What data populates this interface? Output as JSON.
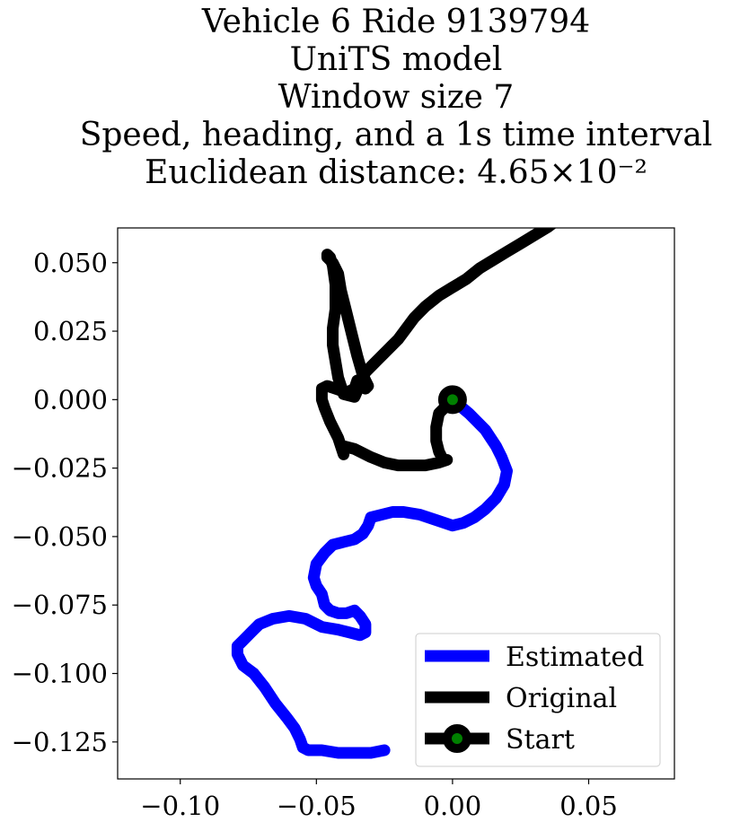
{
  "chart_data": {
    "type": "line",
    "title_lines": [
      "Vehicle 6 Ride 9139794",
      "UniTS model",
      "Window size 7",
      "Speed, heading, and a 1s time interval",
      "Euclidean distance: 4.65×10⁻²"
    ],
    "xlabel": "",
    "ylabel": "",
    "xlim": [
      -0.123,
      0.0815
    ],
    "ylim": [
      -0.1385,
      0.0627
    ],
    "x_ticks": [
      {
        "value": -0.1,
        "label": "−0.10"
      },
      {
        "value": -0.05,
        "label": "−0.05"
      },
      {
        "value": 0.0,
        "label": "0.00"
      },
      {
        "value": 0.05,
        "label": "0.05"
      }
    ],
    "y_ticks": [
      {
        "value": 0.05,
        "label": "0.050"
      },
      {
        "value": 0.025,
        "label": "0.025"
      },
      {
        "value": 0.0,
        "label": "0.000"
      },
      {
        "value": -0.025,
        "label": "−0.025"
      },
      {
        "value": -0.05,
        "label": "−0.050"
      },
      {
        "value": -0.075,
        "label": "−0.075"
      },
      {
        "value": -0.1,
        "label": "−0.100"
      },
      {
        "value": -0.125,
        "label": "−0.125"
      }
    ],
    "grid": false,
    "legend_position": "bottom-right",
    "series": [
      {
        "name": "Estimated",
        "color": "#0000ff",
        "x": [
          0.0,
          0.006,
          0.012,
          0.014,
          0.016,
          0.018,
          0.02,
          0.019,
          0.016,
          0.012,
          0.008,
          0.004,
          0.0,
          -0.006,
          -0.012,
          -0.018,
          -0.022,
          -0.026,
          -0.03,
          -0.031,
          -0.033,
          -0.036,
          -0.04,
          -0.044,
          -0.047,
          -0.05,
          -0.051,
          -0.05,
          -0.048,
          -0.047,
          -0.045,
          -0.042,
          -0.039,
          -0.036,
          -0.034,
          -0.032,
          -0.032,
          -0.034,
          -0.038,
          -0.042,
          -0.048,
          -0.054,
          -0.06,
          -0.066,
          -0.071,
          -0.074,
          -0.077,
          -0.079,
          -0.079,
          -0.077,
          -0.073,
          -0.069,
          -0.065,
          -0.061,
          -0.058,
          -0.056,
          -0.055,
          -0.053,
          -0.048,
          -0.042,
          -0.036,
          -0.03,
          -0.025
        ],
        "y": [
          0.0,
          -0.005,
          -0.011,
          -0.014,
          -0.017,
          -0.021,
          -0.026,
          -0.031,
          -0.036,
          -0.04,
          -0.043,
          -0.045,
          -0.046,
          -0.044,
          -0.042,
          -0.041,
          -0.041,
          -0.042,
          -0.043,
          -0.046,
          -0.049,
          -0.051,
          -0.052,
          -0.053,
          -0.056,
          -0.06,
          -0.065,
          -0.068,
          -0.071,
          -0.075,
          -0.077,
          -0.078,
          -0.078,
          -0.077,
          -0.079,
          -0.082,
          -0.085,
          -0.086,
          -0.085,
          -0.084,
          -0.083,
          -0.08,
          -0.079,
          -0.08,
          -0.082,
          -0.085,
          -0.088,
          -0.09,
          -0.093,
          -0.097,
          -0.1,
          -0.105,
          -0.111,
          -0.116,
          -0.12,
          -0.124,
          -0.127,
          -0.128,
          -0.128,
          -0.129,
          -0.129,
          -0.129,
          -0.128
        ]
      },
      {
        "name": "Original",
        "color": "#000000",
        "x": [
          0.0,
          -0.005,
          -0.006,
          -0.006,
          -0.005,
          -0.004,
          -0.003,
          -0.002,
          -0.005,
          -0.01,
          -0.015,
          -0.02,
          -0.025,
          -0.03,
          -0.034,
          -0.036,
          -0.04,
          -0.04,
          -0.042,
          -0.045,
          -0.047,
          -0.048,
          -0.048,
          -0.046,
          -0.043,
          -0.04,
          -0.038,
          -0.036,
          -0.035,
          -0.033,
          -0.032,
          -0.031,
          -0.033,
          -0.035,
          -0.037,
          -0.039,
          -0.041,
          -0.042,
          -0.044,
          -0.046,
          -0.046,
          -0.045,
          -0.044,
          -0.043,
          -0.043,
          -0.044,
          -0.044,
          -0.043,
          -0.042,
          -0.04,
          -0.036,
          -0.032,
          -0.028,
          -0.024,
          -0.02,
          -0.017,
          -0.014,
          -0.01,
          -0.005,
          0.0,
          0.005,
          0.01,
          0.015,
          0.02,
          0.025,
          0.03,
          0.035,
          0.039
        ],
        "y": [
          0.0,
          -0.005,
          -0.01,
          -0.015,
          -0.019,
          -0.021,
          -0.022,
          -0.022,
          -0.023,
          -0.024,
          -0.024,
          -0.024,
          -0.023,
          -0.021,
          -0.019,
          -0.018,
          -0.017,
          -0.02,
          -0.014,
          -0.008,
          -0.003,
          0.0,
          0.004,
          0.005,
          0.004,
          0.003,
          0.003,
          0.004,
          0.007,
          0.006,
          0.004,
          0.005,
          0.009,
          0.016,
          0.024,
          0.032,
          0.04,
          0.046,
          0.05,
          0.052,
          0.053,
          0.052,
          0.049,
          0.042,
          0.033,
          0.026,
          0.02,
          0.014,
          0.008,
          0.002,
          0.001,
          0.01,
          0.014,
          0.018,
          0.022,
          0.026,
          0.03,
          0.034,
          0.038,
          0.041,
          0.044,
          0.048,
          0.051,
          0.054,
          0.057,
          0.06,
          0.063,
          0.066
        ]
      }
    ],
    "start_point": {
      "name": "Start",
      "x": 0.0,
      "y": 0.0,
      "edge_color": "#000000",
      "face_color": "#008000"
    }
  }
}
